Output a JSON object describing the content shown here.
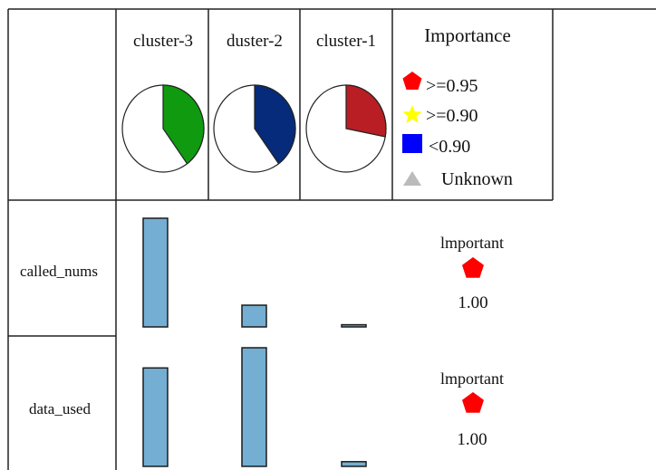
{
  "clusters": [
    {
      "label": "cluster-3",
      "share": 0.4,
      "color": "#0f9a0f"
    },
    {
      "label": "duster-2",
      "share": 0.4,
      "color": "#062b7a"
    },
    {
      "label": "cluster-1",
      "share": 0.28,
      "color": "#b81e24"
    }
  ],
  "legend": {
    "title": "Importance",
    "items": [
      {
        "label": ">=0.95",
        "shape": "pentagon",
        "color": "#ff0000"
      },
      {
        "label": ">=0.90",
        "shape": "star",
        "color": "#ffff00"
      },
      {
        "label": "<0.90",
        "shape": "square",
        "color": "#0000ff"
      },
      {
        "label": "Unknown",
        "shape": "triangle",
        "color": "#bbbbbb"
      }
    ]
  },
  "bar_color": "#74aed2",
  "chart_data": {
    "type": "bar",
    "categories": [
      "cluster-3",
      "duster-2",
      "cluster-1"
    ],
    "ylim": [
      0,
      1
    ],
    "rows": [
      {
        "label": "called_nums",
        "values": [
          1.0,
          0.2,
          0.02
        ],
        "importance_label": "lmportant",
        "importance_value": "1.00"
      },
      {
        "label": "data_used",
        "values": [
          0.83,
          1.0,
          0.04
        ],
        "importance_label": "lmportant",
        "importance_value": "1.00"
      }
    ]
  }
}
